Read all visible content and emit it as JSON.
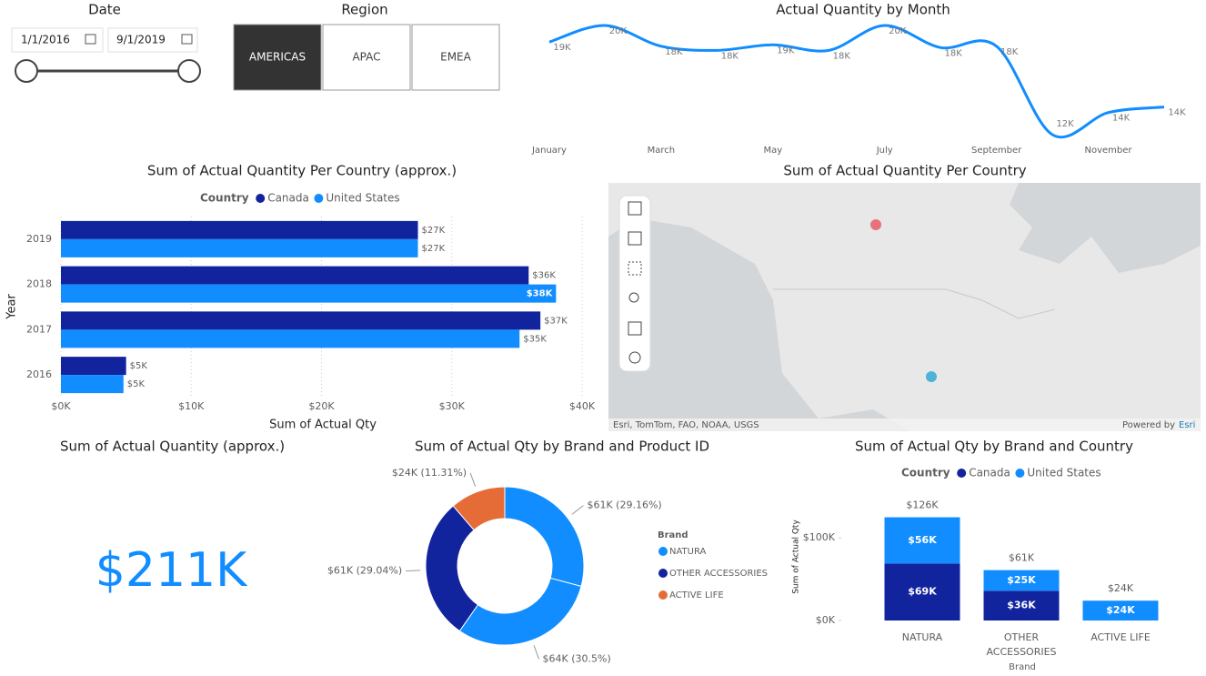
{
  "slicers": {
    "date": {
      "title": "Date",
      "start": "1/1/2016",
      "end": "9/1/2019"
    },
    "region": {
      "title": "Region",
      "options": [
        "AMERICAS",
        "APAC",
        "EMEA"
      ],
      "selected": 0
    }
  },
  "map": {
    "title": "Sum of Actual Quantity Per Country",
    "attribution": "Esri, TomTom, FAO, NOAA, USGS",
    "powered_by": "Powered by",
    "powered_brand": "Esri"
  },
  "chart_data": [
    {
      "type": "line",
      "title": "Actual Quantity by Month",
      "categories": [
        "January",
        null,
        "March",
        null,
        "May",
        null,
        "July",
        null,
        "September",
        null,
        "November",
        null
      ],
      "values": [
        18700,
        19900,
        18400,
        18100,
        18500,
        18100,
        19900,
        18300,
        18400,
        12000,
        13600,
        14000
      ],
      "value_labels": [
        "19K",
        "20K",
        "18K",
        "18K",
        "19K",
        "18K",
        "20K",
        "18K",
        "18K",
        "12K",
        "14K",
        "14K"
      ],
      "color": "#118dff"
    },
    {
      "type": "hbar",
      "title": "Sum of Actual Quantity Per Country (approx.)",
      "legend_title": "Country",
      "x_label": "Sum of Actual Qty",
      "y_label": "Year",
      "categories": [
        "2019",
        "2018",
        "2017",
        "2016"
      ],
      "series": [
        {
          "name": "Canada",
          "color": "#12239e",
          "values": [
            27400,
            35900,
            36800,
            5000
          ],
          "value_labels": [
            "$27K",
            "$36K",
            "$37K",
            "$5K"
          ]
        },
        {
          "name": "United States",
          "color": "#118dff",
          "values": [
            27400,
            38000,
            35200,
            4800
          ],
          "value_labels": [
            "$27K",
            "$38K",
            "$35K",
            "$5K"
          ]
        }
      ],
      "xlim": [
        0,
        40000
      ],
      "xticks": [
        {
          "value": 0,
          "label": "$0K"
        },
        {
          "value": 10000,
          "label": "$10K"
        },
        {
          "value": 20000,
          "label": "$20K"
        },
        {
          "value": 30000,
          "label": "$30K"
        },
        {
          "value": 40000,
          "label": "$40K"
        }
      ],
      "grid": true
    },
    {
      "type": "card",
      "title": "Sum of Actual Quantity (approx.)",
      "values": [
        211000
      ],
      "value_labels": [
        "$211K"
      ],
      "color": "#118dff"
    },
    {
      "type": "donut",
      "title": "Sum of Actual Qty by Brand and Product ID",
      "values": [
        29.16,
        30.5,
        29.04,
        11.31
      ],
      "value_labels": [
        "$61K (29.16%)",
        "$64K (30.5%)",
        "$61K (29.04%)",
        "$24K (11.31%)"
      ],
      "slice_brand": [
        0,
        0,
        1,
        2
      ],
      "legend_title": "Brand",
      "legend": [
        {
          "name": "NATURA",
          "color": "#118dff"
        },
        {
          "name": "OTHER ACCESSORIES",
          "color": "#12239e"
        },
        {
          "name": "ACTIVE LIFE",
          "color": "#e66c37"
        }
      ]
    },
    {
      "type": "stacked_bar",
      "title": "Sum of Actual Qty by Brand and Country",
      "legend_title": "Country",
      "x_label": "Brand",
      "y_label": "Sum of Actual Qty",
      "categories": [
        "NATURA",
        "OTHER ACCESSORIES",
        "ACTIVE LIFE"
      ],
      "series": [
        {
          "name": "Canada",
          "color": "#12239e",
          "values": [
            69000,
            36000,
            null
          ],
          "value_labels": [
            "$69K",
            "$36K",
            null
          ]
        },
        {
          "name": "United States",
          "color": "#118dff",
          "values": [
            56000,
            25000,
            24000
          ],
          "value_labels": [
            "$56K",
            "$25K",
            "$24K"
          ]
        }
      ],
      "total_labels": [
        "$126K",
        "$61K",
        "$24K"
      ],
      "ylim": [
        0,
        130000
      ],
      "yticks": [
        {
          "value": 0,
          "label": "$0K"
        },
        {
          "value": 100000,
          "label": "$100K"
        }
      ]
    }
  ]
}
